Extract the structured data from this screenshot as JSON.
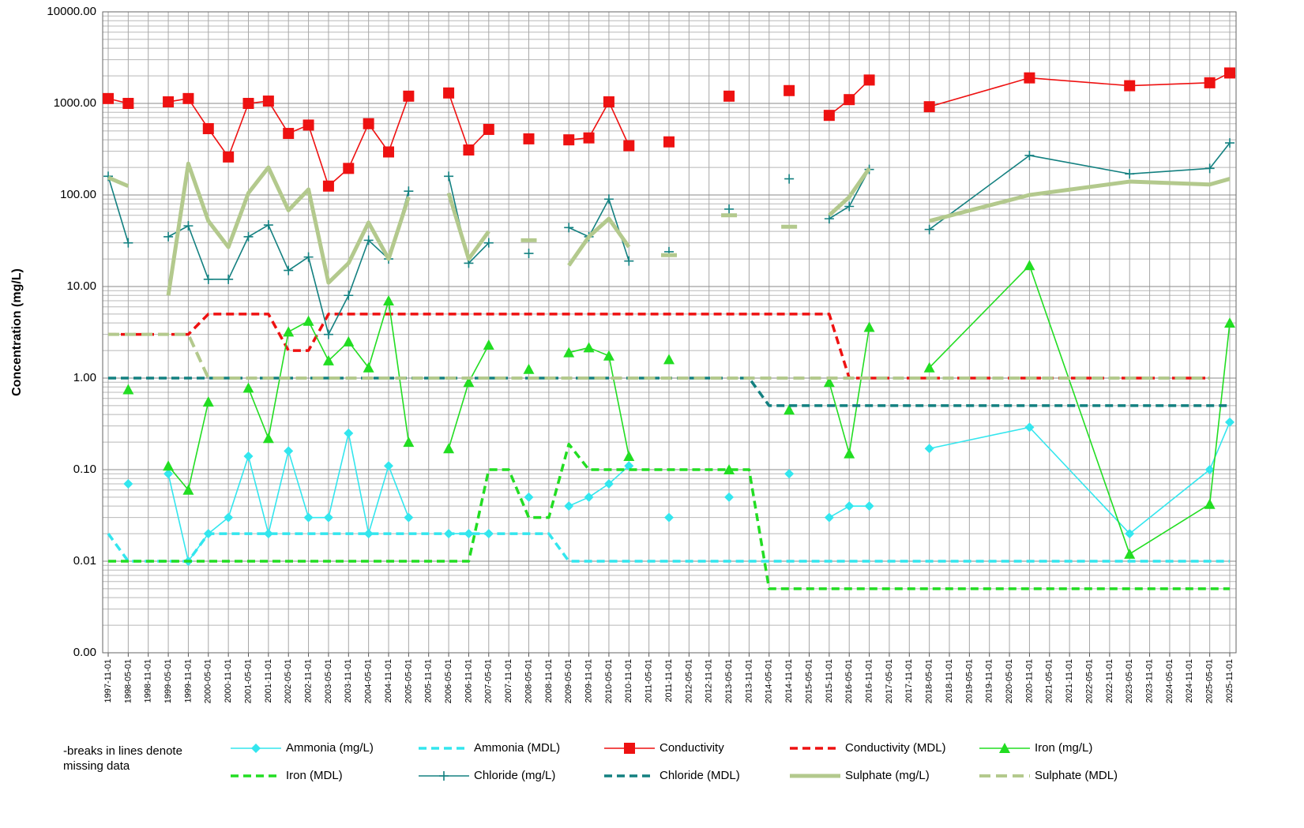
{
  "chart_data": {
    "type": "line",
    "y_label": "Concentration (mg/L)",
    "note": "-breaks in lines denote missing data",
    "log_scale": true,
    "grid": true,
    "minor_grid": true,
    "ylim": [
      0.001,
      10000
    ],
    "yticks": [
      {
        "value": 0.001,
        "label": "0.00"
      },
      0.01,
      {
        "value": 0.1,
        "label": "0.10"
      },
      {
        "value": 1,
        "label": "1.00"
      },
      {
        "value": 10,
        "label": "10.00"
      },
      {
        "value": 100,
        "label": "100.00"
      },
      {
        "value": 1000,
        "label": "1000.00"
      },
      {
        "value": 10000,
        "label": "10000.00"
      }
    ],
    "categories": [
      "1997-11-01",
      "1998-05-01",
      "1998-11-01",
      "1999-05-01",
      "1999-11-01",
      "2000-05-01",
      "2000-11-01",
      "2001-05-01",
      "2001-11-01",
      "2002-05-01",
      "2002-11-01",
      "2003-05-01",
      "2003-11-01",
      "2004-05-01",
      "2004-11-01",
      "2005-05-01",
      "2005-11-01",
      "2006-05-01",
      "2006-11-01",
      "2007-05-01",
      "2007-11-01",
      "2008-05-01",
      "2008-11-01",
      "2009-05-01",
      "2009-11-01",
      "2010-05-01",
      "2010-11-01",
      "2011-05-01",
      "2011-11-01",
      "2012-05-01",
      "2012-11-01",
      "2013-05-01",
      "2013-11-01",
      "2014-05-01",
      "2014-11-01",
      "2015-05-01",
      "2015-11-01",
      "2016-05-01",
      "2016-11-01",
      "2017-05-01",
      "2017-11-01",
      "2018-05-01",
      "2018-11-01",
      "2019-05-01",
      "2019-11-01",
      "2020-05-01",
      "2020-11-01",
      "2021-05-01",
      "2021-11-01",
      "2022-05-01",
      "2022-11-01",
      "2023-05-01",
      "2023-11-01",
      "2024-05-01",
      "2024-11-01",
      "2025-05-01",
      "2025-11-01"
    ],
    "x": [
      "1997-11-01",
      "1998-05-01",
      "1998-11-01",
      "1999-05-01",
      "1999-11-01",
      "2000-05-01",
      "2000-11-01",
      "2001-05-01",
      "2001-11-01",
      "2002-05-01",
      "2002-11-01",
      "2003-05-01",
      "2003-11-01",
      "2004-05-01",
      "2004-11-01",
      "2005-05-01",
      "2005-11-01",
      "2006-05-01",
      "2006-11-01",
      "2007-05-01",
      "2007-11-01",
      "2008-05-01",
      "2008-11-01",
      "2009-05-01",
      "2009-11-01",
      "2010-05-01",
      "2010-11-01",
      "2011-05-01",
      "2011-11-01",
      "2012-05-01",
      "2013-05-01",
      "2013-11-01",
      "2014-05-01",
      "2014-11-01",
      "2015-05-01",
      "2015-11-01",
      "2016-05-01",
      "2016-11-01",
      "2017-05-01",
      "2018-05-01",
      "2020-11-01",
      "2023-05-01",
      "2025-05-01",
      "2025-11-01"
    ],
    "series": [
      {
        "name": "Ammonia (mg/L)",
        "color": "#33e6ee",
        "marker": "diamond",
        "dashed": false,
        "width": 1.6,
        "values": [
          null,
          0.07,
          null,
          0.09,
          0.01,
          0.02,
          0.03,
          0.14,
          0.02,
          0.16,
          0.03,
          0.03,
          0.25,
          0.02,
          0.11,
          0.03,
          null,
          0.02,
          0.02,
          0.02,
          null,
          0.05,
          null,
          0.04,
          0.05,
          0.07,
          0.11,
          null,
          0.03,
          null,
          0.05,
          null,
          null,
          0.09,
          null,
          0.03,
          0.04,
          0.04,
          null,
          0.17,
          0.29,
          0.02,
          0.1,
          0.33
        ]
      },
      {
        "name": "Ammonia (MDL)",
        "color": "#33e6ee",
        "marker": "none",
        "dashed": true,
        "width": 3.5,
        "values": [
          0.02,
          0.01,
          0.01,
          0.01,
          0.01,
          0.02,
          0.02,
          0.02,
          0.02,
          0.02,
          0.02,
          0.02,
          0.02,
          0.02,
          0.02,
          0.02,
          0.02,
          0.02,
          0.02,
          0.02,
          0.02,
          0.02,
          0.02,
          0.01,
          0.01,
          0.01,
          0.01,
          0.01,
          0.01,
          0.01,
          0.01,
          0.01,
          0.01,
          0.01,
          0.01,
          0.01,
          0.01,
          0.01,
          0.01,
          0.01,
          0.01,
          0.01,
          0.01,
          0.01
        ]
      },
      {
        "name": "Conductivity",
        "color": "#ee1111",
        "marker": "square",
        "dashed": false,
        "width": 1.6,
        "values": [
          1130,
          1000,
          null,
          1040,
          1130,
          530,
          260,
          1000,
          1060,
          470,
          580,
          125,
          195,
          600,
          295,
          1200,
          null,
          1300,
          310,
          520,
          null,
          410,
          null,
          400,
          420,
          1040,
          345,
          null,
          380,
          null,
          1200,
          null,
          null,
          1380,
          null,
          740,
          1100,
          1800,
          null,
          920,
          1900,
          1560,
          1680,
          2150
        ]
      },
      {
        "name": "Conductivity (MDL)",
        "color": "#ee1111",
        "marker": "none",
        "dashed": true,
        "width": 3.5,
        "values": [
          3,
          3,
          3,
          3,
          3,
          5,
          5,
          5,
          5,
          2,
          2,
          5,
          5,
          5,
          5,
          5,
          5,
          5,
          5,
          5,
          5,
          5,
          5,
          5,
          5,
          5,
          5,
          5,
          5,
          5,
          5,
          5,
          5,
          5,
          5,
          5,
          1,
          1,
          1,
          1,
          1,
          1,
          1,
          null
        ]
      },
      {
        "name": "Iron (mg/L)",
        "color": "#22dd22",
        "marker": "triangle",
        "dashed": false,
        "width": 1.6,
        "values": [
          null,
          0.75,
          null,
          0.11,
          0.06,
          0.55,
          null,
          0.78,
          0.22,
          3.2,
          4.2,
          1.55,
          2.5,
          1.3,
          7,
          0.2,
          null,
          0.17,
          0.9,
          2.3,
          null,
          1.25,
          null,
          1.9,
          2.15,
          1.75,
          0.14,
          null,
          1.6,
          null,
          0.1,
          null,
          null,
          0.45,
          null,
          0.9,
          0.15,
          3.6,
          null,
          1.3,
          17,
          0.012,
          0.042,
          4
        ]
      },
      {
        "name": "Iron (MDL)",
        "color": "#22dd22",
        "marker": "none",
        "dashed": true,
        "width": 3.5,
        "values": [
          0.01,
          0.01,
          0.01,
          0.01,
          0.01,
          0.01,
          0.01,
          0.01,
          0.01,
          0.01,
          0.01,
          0.01,
          0.01,
          0.01,
          0.01,
          0.01,
          0.01,
          0.01,
          0.01,
          0.1,
          0.1,
          0.03,
          0.03,
          0.19,
          0.1,
          0.1,
          0.1,
          0.1,
          0.1,
          0.1,
          0.1,
          0.1,
          0.005,
          0.005,
          0.005,
          0.005,
          0.005,
          0.005,
          0.005,
          0.005,
          0.005,
          0.005,
          0.005,
          0.005
        ]
      },
      {
        "name": "Chloride (mg/L)",
        "color": "#138080",
        "marker": "plus",
        "dashed": false,
        "width": 1.6,
        "values": [
          160,
          30,
          null,
          35,
          46,
          12,
          12,
          35,
          47,
          15,
          21,
          3,
          8,
          32,
          20,
          110,
          null,
          160,
          18,
          30,
          null,
          23,
          null,
          44,
          35,
          90,
          19,
          null,
          24,
          null,
          70,
          null,
          null,
          150,
          null,
          55,
          75,
          190,
          null,
          42,
          270,
          170,
          195,
          370
        ]
      },
      {
        "name": "Chloride (MDL)",
        "color": "#138080",
        "marker": "none",
        "dashed": true,
        "width": 3.5,
        "values": [
          1,
          1,
          1,
          1,
          1,
          1,
          1,
          1,
          1,
          1,
          1,
          1,
          1,
          1,
          1,
          1,
          1,
          1,
          1,
          1,
          1,
          1,
          1,
          1,
          1,
          1,
          1,
          1,
          1,
          1,
          1,
          1,
          0.5,
          0.5,
          0.5,
          0.5,
          0.5,
          0.5,
          0.5,
          0.5,
          0.5,
          0.5,
          0.5,
          0.5
        ]
      },
      {
        "name": "Sulphate (mg/L)",
        "color": "#b3c98d",
        "marker": "none",
        "dashed": false,
        "width": 5,
        "values": [
          155,
          125,
          null,
          8,
          220,
          52,
          27,
          105,
          200,
          68,
          115,
          11,
          18,
          50,
          20,
          95,
          null,
          105,
          20,
          40,
          null,
          32,
          null,
          17,
          35,
          55,
          27,
          null,
          22,
          null,
          60,
          null,
          null,
          45,
          null,
          60,
          95,
          195,
          null,
          52,
          100,
          140,
          130,
          150
        ]
      },
      {
        "name": "Sulphate (MDL)",
        "color": "#b3c98d",
        "marker": "none",
        "dashed": true,
        "width": 4,
        "values": [
          3,
          3,
          3,
          3,
          3,
          1,
          1,
          1,
          1,
          1,
          1,
          1,
          1,
          1,
          1,
          1,
          1,
          1,
          1,
          1,
          1,
          1,
          1,
          1,
          1,
          1,
          1,
          1,
          1,
          1,
          1,
          1,
          1,
          1,
          1,
          1,
          1,
          1,
          1,
          1,
          1,
          1,
          1,
          null
        ]
      }
    ]
  }
}
